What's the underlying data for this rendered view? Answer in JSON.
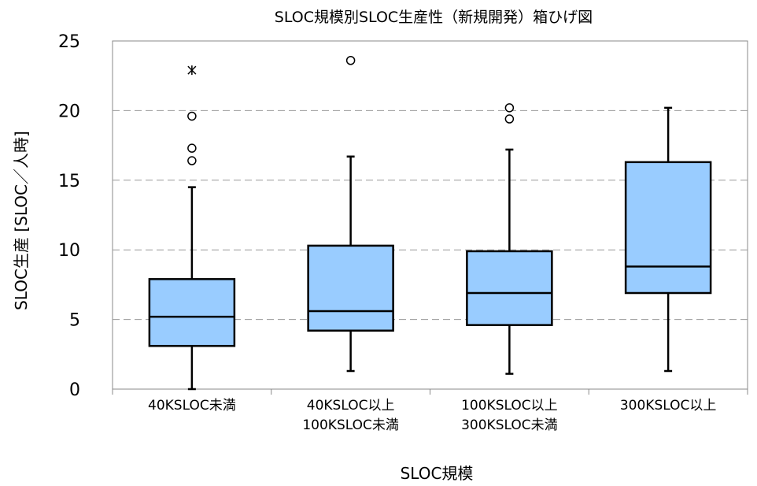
{
  "chart_data": {
    "type": "boxplot",
    "title": "SLOC規模別SLOC生産性（新規開発）箱ひげ図",
    "xlabel": "SLOC規模",
    "ylabel": "SLOC生産 [SLOC／人時]",
    "ylim": [
      0,
      25
    ],
    "yticks": [
      "0",
      "5",
      "10",
      "15",
      "20",
      "25"
    ],
    "grid": "horizontal dashed",
    "categories": [
      [
        "40KSLOC未満"
      ],
      [
        "40KSLOC以上",
        "100KSLOC未満"
      ],
      [
        "100KSLOC以上",
        "300KSLOC未満"
      ],
      [
        "300KSLOC以上"
      ]
    ],
    "boxes": [
      {
        "whisker_low": 0.0,
        "q1": 3.1,
        "median": 5.2,
        "q3": 7.9,
        "whisker_high": 14.5,
        "outliers": [
          16.4,
          17.3,
          19.6
        ],
        "extremes": [
          22.9
        ]
      },
      {
        "whisker_low": 1.3,
        "q1": 4.2,
        "median": 5.6,
        "q3": 10.3,
        "whisker_high": 16.7,
        "outliers": [
          23.6
        ],
        "extremes": []
      },
      {
        "whisker_low": 1.1,
        "q1": 4.6,
        "median": 6.9,
        "q3": 9.9,
        "whisker_high": 17.2,
        "outliers": [
          19.4,
          20.2
        ],
        "extremes": []
      },
      {
        "whisker_low": 1.3,
        "q1": 6.9,
        "median": 8.8,
        "q3": 16.3,
        "whisker_high": 20.2,
        "outliers": [],
        "extremes": []
      }
    ],
    "colors": {
      "box_fill": "#99ccff",
      "line": "#000000",
      "grid": "#999999",
      "axis": "#888888"
    }
  }
}
